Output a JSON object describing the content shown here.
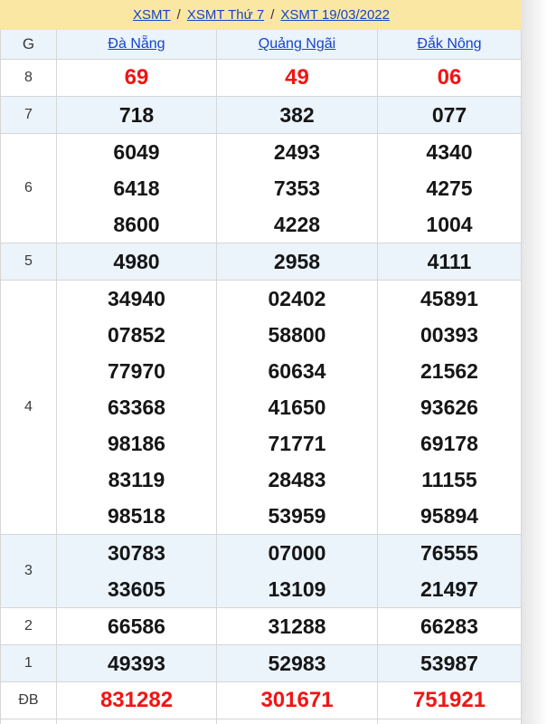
{
  "breadcrumb": {
    "separator": "/",
    "items": [
      {
        "label": "XSMT"
      },
      {
        "label": "XSMT Thứ 7"
      },
      {
        "label": "XSMT 19/03/2022"
      }
    ]
  },
  "table": {
    "corner_label": "G",
    "columns": [
      "Đà Nẵng",
      "Quảng Ngãi",
      "Đắk Nông"
    ],
    "rows": [
      {
        "label": "8",
        "value_color": "red",
        "cells": [
          [
            "69"
          ],
          [
            "49"
          ],
          [
            "06"
          ]
        ]
      },
      {
        "label": "7",
        "value_color": "black",
        "cells": [
          [
            "718"
          ],
          [
            "382"
          ],
          [
            "077"
          ]
        ]
      },
      {
        "label": "6",
        "value_color": "black",
        "cells": [
          [
            "6049",
            "6418",
            "8600"
          ],
          [
            "2493",
            "7353",
            "4228"
          ],
          [
            "4340",
            "4275",
            "1004"
          ]
        ]
      },
      {
        "label": "5",
        "value_color": "black",
        "cells": [
          [
            "4980"
          ],
          [
            "2958"
          ],
          [
            "4111"
          ]
        ]
      },
      {
        "label": "4",
        "value_color": "black",
        "cells": [
          [
            "34940",
            "07852",
            "77970",
            "63368",
            "98186",
            "83119",
            "98518"
          ],
          [
            "02402",
            "58800",
            "60634",
            "41650",
            "71771",
            "28483",
            "53959"
          ],
          [
            "45891",
            "00393",
            "21562",
            "93626",
            "69178",
            "11155",
            "95894"
          ]
        ]
      },
      {
        "label": "3",
        "value_color": "black",
        "cells": [
          [
            "30783",
            "33605"
          ],
          [
            "07000",
            "13109"
          ],
          [
            "76555",
            "21497"
          ]
        ]
      },
      {
        "label": "2",
        "value_color": "black",
        "cells": [
          [
            "66586"
          ],
          [
            "31288"
          ],
          [
            "66283"
          ]
        ]
      },
      {
        "label": "1",
        "value_color": "black",
        "cells": [
          [
            "49393"
          ],
          [
            "52983"
          ],
          [
            "53987"
          ]
        ]
      },
      {
        "label": "ĐB",
        "value_color": "red",
        "cells": [
          [
            "831282"
          ],
          [
            "301671"
          ],
          [
            "751921"
          ]
        ]
      }
    ]
  },
  "colors": {
    "header_bg": "#FBE7A4",
    "shaded_row_bg": "#EBF3FB",
    "link_blue": "#1544CB",
    "value_red": "#F21414",
    "value_black": "#161616",
    "border": "#D6D6D6"
  }
}
